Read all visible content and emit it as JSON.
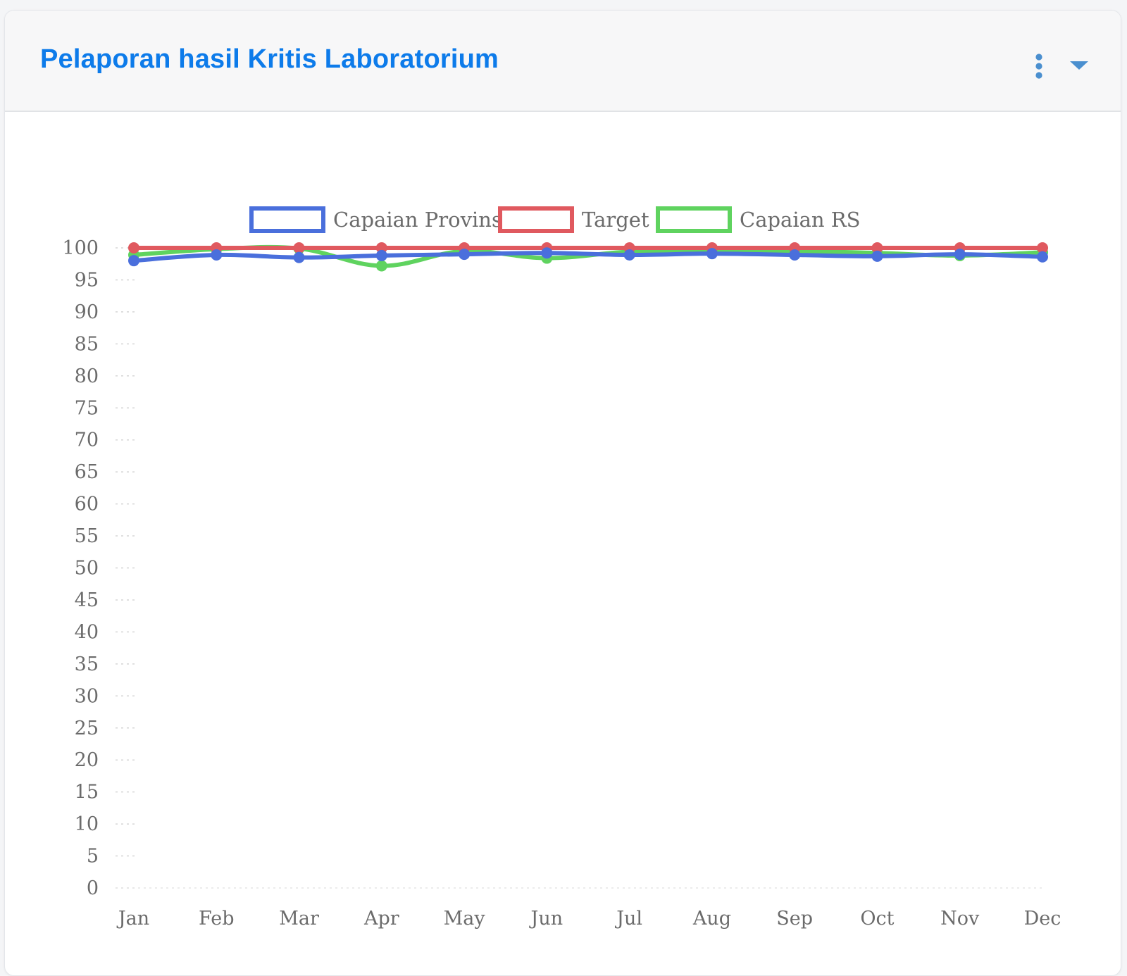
{
  "card": {
    "title": "Pelaporan hasil Kritis Laboratorium",
    "menu_icon": "kebab-vertical-icon",
    "collapse_icon": "caret-down-icon",
    "accent_color": "#0d7bea"
  },
  "chart_data": {
    "type": "line",
    "title": "",
    "xlabel": "",
    "ylabel": "",
    "categories": [
      "Jan",
      "Feb",
      "Mar",
      "Apr",
      "May",
      "Jun",
      "Jul",
      "Aug",
      "Sep",
      "Oct",
      "Nov",
      "Dec"
    ],
    "ylim": [
      0,
      100
    ],
    "yticks": [
      0,
      5,
      10,
      15,
      20,
      25,
      30,
      35,
      40,
      45,
      50,
      55,
      60,
      65,
      70,
      75,
      80,
      85,
      90,
      95,
      100
    ],
    "grid": "dashed",
    "legend_position": "top-center",
    "series": [
      {
        "name": "Capaian Provinsi",
        "color": "#4a6fdc",
        "values": [
          98.0,
          98.9,
          98.5,
          98.8,
          99.0,
          99.2,
          98.9,
          99.1,
          98.9,
          98.7,
          99.0,
          98.6
        ]
      },
      {
        "name": "Target",
        "color": "#e0595f",
        "values": [
          100,
          100,
          100,
          100,
          100,
          100,
          100,
          100,
          100,
          100,
          100,
          100
        ]
      },
      {
        "name": "Capaian RS",
        "color": "#5fd35f",
        "values": [
          98.9,
          99.8,
          99.9,
          97.2,
          99.5,
          98.4,
          99.4,
          99.5,
          99.5,
          99.2,
          98.8,
          99.3
        ]
      }
    ]
  }
}
